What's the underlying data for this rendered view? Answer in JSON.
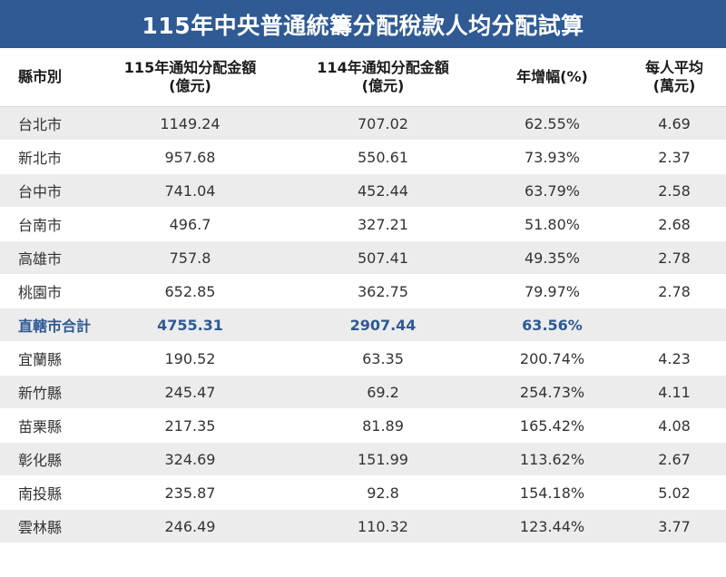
{
  "title": "115年中央普通統籌分配稅款人均分配試算",
  "table": {
    "headers": [
      {
        "line1": "縣市別",
        "line2": ""
      },
      {
        "line1": "115年通知分配金額",
        "line2": "(億元)"
      },
      {
        "line1": "114年通知分配金額",
        "line2": "(億元)"
      },
      {
        "line1": "年增幅(%)",
        "line2": ""
      },
      {
        "line1": "每人平均",
        "line2": "(萬元)"
      }
    ],
    "rows": [
      {
        "name": "台北市",
        "amt115": "1149.24",
        "amt114": "707.02",
        "growth": "62.55%",
        "per_capita": "4.69"
      },
      {
        "name": "新北市",
        "amt115": "957.68",
        "amt114": "550.61",
        "growth": "73.93%",
        "per_capita": "2.37"
      },
      {
        "name": "台中市",
        "amt115": "741.04",
        "amt114": "452.44",
        "growth": "63.79%",
        "per_capita": "2.58"
      },
      {
        "name": "台南市",
        "amt115": "496.7",
        "amt114": "327.21",
        "growth": "51.80%",
        "per_capita": "2.68"
      },
      {
        "name": "高雄市",
        "amt115": "757.8",
        "amt114": "507.41",
        "growth": "49.35%",
        "per_capita": "2.78"
      },
      {
        "name": "桃園市",
        "amt115": "652.85",
        "amt114": "362.75",
        "growth": "79.97%",
        "per_capita": "2.78"
      },
      {
        "name": "直轄市合計",
        "amt115": "4755.31",
        "amt114": "2907.44",
        "growth": "63.56%",
        "per_capita": ""
      },
      {
        "name": "宜蘭縣",
        "amt115": "190.52",
        "amt114": "63.35",
        "growth": "200.74%",
        "per_capita": "4.23"
      },
      {
        "name": "新竹縣",
        "amt115": "245.47",
        "amt114": "69.2",
        "growth": "254.73%",
        "per_capita": "4.11"
      },
      {
        "name": "苗栗縣",
        "amt115": "217.35",
        "amt114": "81.89",
        "growth": "165.42%",
        "per_capita": "4.08"
      },
      {
        "name": "彰化縣",
        "amt115": "324.69",
        "amt114": "151.99",
        "growth": "113.62%",
        "per_capita": "2.67"
      },
      {
        "name": "南投縣",
        "amt115": "235.87",
        "amt114": "92.8",
        "growth": "154.18%",
        "per_capita": "5.02"
      },
      {
        "name": "雲林縣",
        "amt115": "246.49",
        "amt114": "110.32",
        "growth": "123.44%",
        "per_capita": "3.77"
      }
    ],
    "subtotal_color": "#2f5a93"
  },
  "title_bar_color": "#2f5a93"
}
